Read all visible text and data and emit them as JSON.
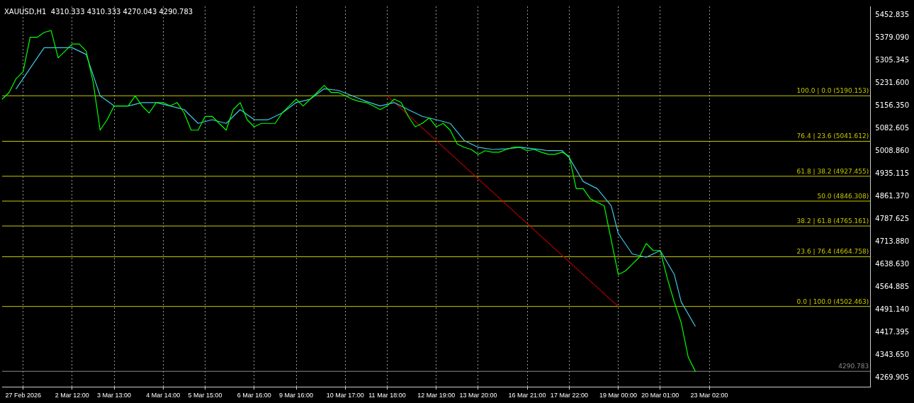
{
  "chart_data": {
    "type": "line",
    "title": "XAUUSD,H1  4310.333 4310.333 4270.043 4290.783",
    "categories": [
      null,
      null,
      null,
      "27 Feb 2026",
      null,
      null,
      null,
      null,
      null,
      null,
      "2 Mar 12:00",
      null,
      null,
      null,
      null,
      null,
      "3 Mar 13:00",
      null,
      null,
      null,
      null,
      null,
      null,
      "4 Mar 14:00",
      null,
      null,
      null,
      null,
      null,
      "5 Mar 15:00",
      null,
      null,
      null,
      null,
      null,
      null,
      "6 Mar 16:00",
      null,
      null,
      null,
      null,
      null,
      "9 Mar 16:00",
      null,
      null,
      null,
      null,
      null,
      null,
      "10 Mar 17:00",
      null,
      null,
      null,
      null,
      null,
      "11 Mar 18:00",
      null,
      null,
      null,
      null,
      null,
      null,
      "12 Mar 19:00",
      null,
      null,
      null,
      null,
      null,
      "13 Mar 20:00",
      null,
      null,
      null,
      null,
      null,
      null,
      "16 Mar 21:00",
      null,
      null,
      null,
      null,
      null,
      "17 Mar 22:00",
      null,
      null,
      null,
      null,
      null,
      null,
      "19 Mar 00:00",
      null,
      null,
      null,
      null,
      null,
      "20 Mar 01:00",
      null,
      null,
      null,
      null,
      null,
      null,
      "23 Mar 02:00",
      null,
      null,
      null,
      null,
      null,
      null,
      null,
      null,
      null,
      null,
      null,
      null,
      null,
      null,
      null,
      null,
      null,
      null,
      null,
      null,
      null,
      null,
      null
    ],
    "ylim": [
      4240,
      5482
    ],
    "yticks": [
      5452.835,
      {
        "value": 5379.09,
        "label": "5379.090"
      },
      5305.345,
      {
        "value": 5231.6,
        "label": "5231.600"
      },
      {
        "value": 5156.35,
        "label": "5156.350"
      },
      5082.605,
      {
        "value": 5008.86,
        "label": "5008.860"
      },
      4935.115,
      {
        "value": 4861.37,
        "label": "4861.370"
      },
      4787.625,
      {
        "value": 4713.88,
        "label": "4713.880"
      },
      {
        "value": 4638.63,
        "label": "4638.630"
      },
      4564.885,
      {
        "value": 4491.14,
        "label": "4491.140"
      },
      4417.395,
      {
        "value": 4343.65,
        "label": "4343.650"
      },
      4269.905
    ],
    "grid": "x",
    "legend": false,
    "marker": "none",
    "series": [
      {
        "color": "#00ff00",
        "values": [
          5179,
          5201,
          5246,
          5269,
          5381,
          5381,
          5397,
          5403,
          5314,
          5336,
          5359,
          5359,
          5336,
          5235,
          5078,
          5112,
          5157,
          5157,
          5157,
          5190,
          5157,
          5134,
          5168,
          5168,
          5157,
          5168,
          5134,
          5078,
          5078,
          5123,
          5123,
          5100,
          5078,
          5145,
          5168,
          5112,
          5089,
          5100,
          5100,
          5100,
          5134,
          5157,
          5179,
          5157,
          5179,
          5201,
          5224,
          5201,
          5201,
          5190,
          5179,
          5172,
          5168,
          5157,
          5145,
          5157,
          5179,
          5168,
          5123,
          5089,
          5100,
          5118,
          5089,
          5100,
          5078,
          5033,
          5022,
          5015,
          4999,
          5011,
          5006,
          5006,
          5015,
          5022,
          5022,
          5011,
          5015,
          5006,
          4999,
          4999,
          5006,
          4993,
          4887,
          4887,
          4854,
          4842,
          4831,
          4719,
          4607,
          4618,
          4640,
          4663,
          4708,
          4685,
          4685,
          4595,
          4517,
          4449,
          4337,
          4291,
          null,
          null,
          null,
          null,
          null,
          null,
          null,
          null,
          null,
          null,
          null,
          null,
          null,
          null,
          null,
          null,
          null,
          null,
          null,
          null,
          null,
          null,
          null,
          null,
          null
        ]
      },
      {
        "color": "#40c8e8",
        "values": [
          null,
          null,
          5213,
          null,
          5280,
          null,
          5347,
          null,
          5347,
          null,
          5347,
          null,
          5325,
          null,
          5190,
          null,
          5157,
          null,
          5157,
          null,
          5168,
          null,
          5168,
          null,
          5157,
          null,
          5145,
          null,
          5100,
          null,
          5112,
          null,
          5100,
          null,
          5145,
          null,
          5112,
          null,
          5112,
          null,
          5134,
          null,
          5168,
          null,
          5179,
          null,
          5213,
          null,
          5208,
          null,
          5190,
          null,
          5172,
          null,
          5157,
          null,
          5168,
          null,
          5145,
          null,
          5123,
          null,
          5112,
          null,
          5100,
          null,
          5044,
          null,
          5022,
          null,
          5015,
          null,
          5017,
          null,
          5022,
          null,
          5017,
          null,
          5011,
          null,
          5011,
          4988,
          null,
          4910,
          null,
          4887,
          null,
          4831,
          4741,
          null,
          4674,
          null,
          4663,
          null,
          4685,
          null,
          4607,
          4517,
          null,
          4438,
          null,
          null,
          null,
          null,
          null,
          null,
          null,
          null,
          null,
          null,
          null,
          null,
          null,
          null,
          null,
          null,
          null,
          null,
          null,
          null,
          null,
          null,
          null,
          null,
          null
        ]
      },
      {
        "color": "#c00000",
        "line_style": "dotted",
        "values": [
          null,
          null,
          null,
          null,
          null,
          null,
          null,
          null,
          null,
          null,
          null,
          null,
          null,
          null,
          null,
          null,
          null,
          null,
          null,
          null,
          null,
          null,
          null,
          null,
          null,
          null,
          null,
          null,
          null,
          null,
          null,
          null,
          null,
          null,
          null,
          null,
          null,
          null,
          null,
          null,
          null,
          null,
          null,
          null,
          null,
          null,
          null,
          null,
          null,
          null,
          null,
          null,
          null,
          null,
          null,
          5190,
          null,
          null,
          null,
          null,
          null,
          null,
          null,
          null,
          null,
          null,
          null,
          null,
          null,
          null,
          null,
          null,
          null,
          null,
          null,
          null,
          null,
          null,
          null,
          null,
          null,
          null,
          null,
          null,
          null,
          null,
          null,
          null,
          4502,
          null,
          null,
          null,
          null,
          null,
          null,
          null,
          null,
          null,
          null,
          null,
          null,
          null,
          null,
          null,
          null,
          null,
          null,
          null,
          null,
          null,
          null,
          null,
          null,
          null,
          null,
          null,
          null,
          null,
          null,
          null,
          null,
          null,
          null,
          null,
          null
        ]
      }
    ],
    "ref_lines": [
      {
        "axis": "y",
        "value": 5190.153,
        "label": "100.0 | 0.0 (5190.153)",
        "color": "#c8c800"
      },
      {
        "axis": "y",
        "value": 5041.612,
        "label": "76.4 | 23.6 (5041.612)",
        "color": "#c8c800"
      },
      {
        "axis": "y",
        "value": 4927.455,
        "label": "61.8 | 38.2 (4927.455)",
        "color": "#c8c800"
      },
      {
        "axis": "y",
        "value": 4846.308,
        "label": "50.0 (4846.308)",
        "color": "#c8c800"
      },
      {
        "axis": "y",
        "value": 4765.161,
        "label": "38.2 | 61.8 (4765.161)",
        "color": "#c8c800"
      },
      {
        "axis": "y",
        "value": 4664.758,
        "label": "23.6 | 76.4 (4664.758)",
        "color": "#c8c800"
      },
      {
        "axis": "y",
        "value": 4502.463,
        "label": "0.0 | 100.0 (4502.463)",
        "color": "#c8c800"
      },
      {
        "axis": "y",
        "value": 4290.783,
        "label": "4290.783",
        "color": "#8a8a8a"
      }
    ]
  }
}
